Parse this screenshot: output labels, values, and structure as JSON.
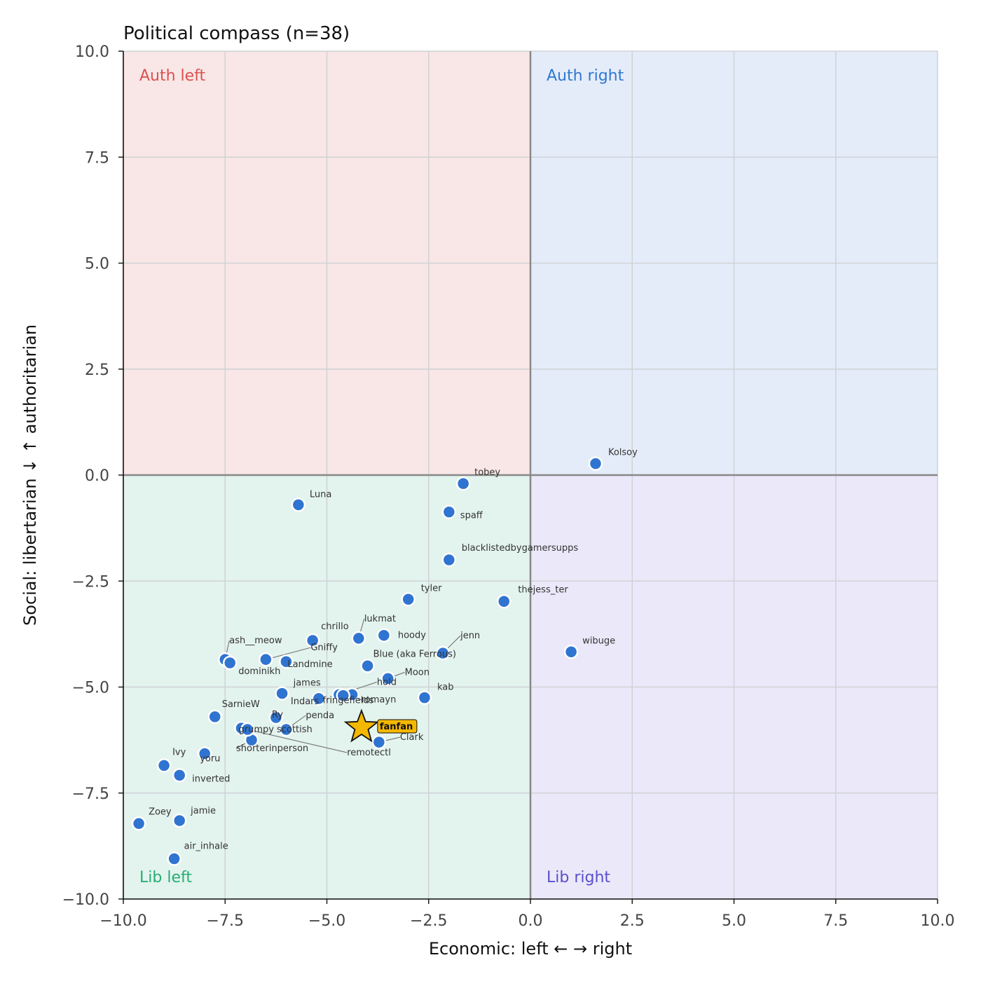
{
  "chart_data": {
    "type": "scatter",
    "title": "Political compass (n=38)",
    "xlabel": "Economic: left ← → right",
    "ylabel": "Social: libertarian ↓ ↑ authoritarian",
    "xlim": [
      -10,
      10
    ],
    "ylim": [
      -10,
      10
    ],
    "xticks": [
      -10,
      -7.5,
      -5,
      -2.5,
      0,
      2.5,
      5,
      7.5,
      10
    ],
    "yticks": [
      -10,
      -7.5,
      -5,
      -2.5,
      0,
      2.5,
      5,
      7.5,
      10
    ],
    "xtick_labels": [
      "−10.0",
      "−7.5",
      "−5.0",
      "−2.5",
      "0.0",
      "2.5",
      "5.0",
      "7.5",
      "10.0"
    ],
    "ytick_labels": [
      "−10.0",
      "−7.5",
      "−5.0",
      "−2.5",
      "0.0",
      "2.5",
      "5.0",
      "7.5",
      "10.0"
    ],
    "grid": true,
    "quadrants": [
      {
        "label": "Auth left",
        "color": "#f9e6e6",
        "text_color": "#d9534f",
        "x": [
          -10,
          0
        ],
        "y": [
          0,
          10
        ]
      },
      {
        "label": "Auth right",
        "color": "#e5ecf9",
        "text_color": "#2f78d0",
        "x": [
          0,
          10
        ],
        "y": [
          0,
          10
        ]
      },
      {
        "label": "Lib left",
        "color": "#e3f3ee",
        "text_color": "#27ae73",
        "x": [
          -10,
          0
        ],
        "y": [
          -10,
          0
        ]
      },
      {
        "label": "Lib right",
        "color": "#ebe8f9",
        "text_color": "#5b4fcf",
        "x": [
          0,
          10
        ],
        "y": [
          -10,
          0
        ]
      }
    ],
    "point_color": "#2f74d0",
    "highlight_color": "#f5b800",
    "points": [
      {
        "name": "Kolsoy",
        "x": 1.6,
        "y": 0.27
      },
      {
        "name": "tobey",
        "x": -1.65,
        "y": -0.2
      },
      {
        "name": "Luna",
        "x": -5.7,
        "y": -0.7
      },
      {
        "name": "spaff",
        "x": -2.0,
        "y": -0.87
      },
      {
        "name": "blacklistedbygamersupps",
        "x": -2.0,
        "y": -2.0
      },
      {
        "name": "tyler",
        "x": -3.0,
        "y": -2.93
      },
      {
        "name": "thejess_ter",
        "x": -0.65,
        "y": -2.98
      },
      {
        "name": "wibuge",
        "x": 1.0,
        "y": -4.17
      },
      {
        "name": "chrillo",
        "x": -5.35,
        "y": -3.9
      },
      {
        "name": "lukmat",
        "x": -4.22,
        "y": -3.85
      },
      {
        "name": "hoody",
        "x": -3.6,
        "y": -3.78
      },
      {
        "name": "jenn",
        "x": -2.15,
        "y": -4.2
      },
      {
        "name": "ash__meow",
        "x": -7.5,
        "y": -4.35
      },
      {
        "name": "dominikh",
        "x": -7.38,
        "y": -4.43
      },
      {
        "name": "Gniffy",
        "x": -6.5,
        "y": -4.35
      },
      {
        "name": "Landmine",
        "x": -6.0,
        "y": -4.4
      },
      {
        "name": "Blue (aka Ferrous)",
        "x": -4.0,
        "y": -4.5
      },
      {
        "name": "Moon",
        "x": -3.5,
        "y": -4.8
      },
      {
        "name": "james",
        "x": -6.1,
        "y": -5.15
      },
      {
        "name": "hold",
        "x": -4.7,
        "y": -5.18
      },
      {
        "name": "Indars",
        "x": -5.2,
        "y": -5.27
      },
      {
        "name": "fringefields",
        "x": -4.38,
        "y": -5.18
      },
      {
        "name": "romayn",
        "x": -4.6,
        "y": -5.2
      },
      {
        "name": "kab",
        "x": -2.6,
        "y": -5.25
      },
      {
        "name": "SarnieW",
        "x": -7.75,
        "y": -5.7
      },
      {
        "name": "Ry",
        "x": -6.25,
        "y": -5.72
      },
      {
        "name": "penda",
        "x": -6.0,
        "y": -6.0
      },
      {
        "name": "grumpy scottish",
        "x": -7.1,
        "y": -5.97
      },
      {
        "name": "shorterinperson",
        "x": -6.85,
        "y": -6.25
      },
      {
        "name": "remotectl",
        "x": -6.95,
        "y": -6.0
      },
      {
        "name": "Clark",
        "x": -3.72,
        "y": -6.3
      },
      {
        "name": "Ivy",
        "x": -9.0,
        "y": -6.85
      },
      {
        "name": "yoru",
        "x": -8.0,
        "y": -6.57
      },
      {
        "name": "inverted",
        "x": -8.62,
        "y": -7.08
      },
      {
        "name": "Zoey",
        "x": -9.62,
        "y": -8.22
      },
      {
        "name": "jamie",
        "x": -8.62,
        "y": -8.15
      },
      {
        "name": "air_inhale",
        "x": -8.75,
        "y": -9.05
      }
    ],
    "highlight": {
      "name": "fanfan",
      "x": -4.15,
      "y": -5.95
    }
  }
}
